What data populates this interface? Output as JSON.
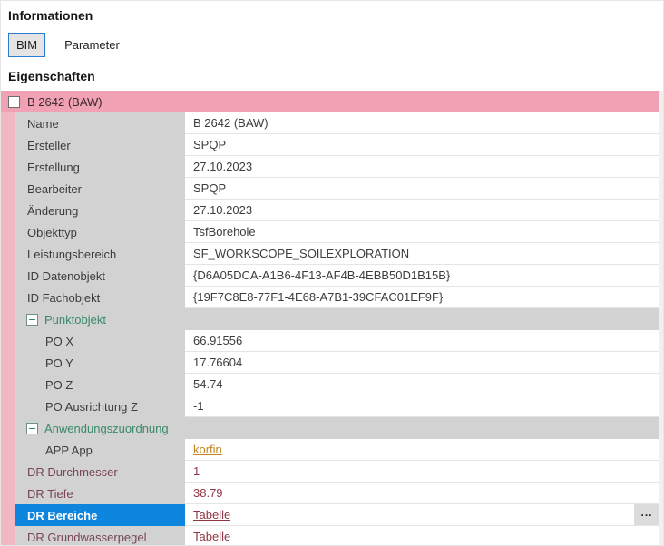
{
  "panel": {
    "title": "Informationen",
    "section_title": "Eigenschaften"
  },
  "tabs": [
    {
      "label": "BIM",
      "selected": true
    },
    {
      "label": "Parameter",
      "selected": false
    }
  ],
  "colors": {
    "tab_border_blue": "#2b7cd3",
    "header_pink": "#f0a1b3",
    "stripe_pink": "#f3b7c3",
    "label_gray": "#d2d2d2",
    "group_green": "#3a8a68",
    "dr_maroon": "#8e3744",
    "dr_label_maroon": "#774553",
    "link_orange": "#c4841d",
    "selection_blue": "#0f86dd"
  },
  "grid": {
    "ellipsis_label": "...",
    "rows": [
      {
        "kind": "header",
        "label": "B 2642 (BAW)"
      },
      {
        "kind": "prop",
        "indent": 1,
        "label": "Name",
        "value": "B 2642 (BAW)"
      },
      {
        "kind": "prop",
        "indent": 1,
        "label": "Ersteller",
        "value": "SPQP"
      },
      {
        "kind": "prop",
        "indent": 1,
        "label": "Erstellung",
        "value": "27.10.2023"
      },
      {
        "kind": "prop",
        "indent": 1,
        "label": "Bearbeiter",
        "value": "SPQP"
      },
      {
        "kind": "prop",
        "indent": 1,
        "label": "Änderung",
        "value": "27.10.2023"
      },
      {
        "kind": "prop",
        "indent": 1,
        "label": "Objekttyp",
        "value": "TsfBorehole"
      },
      {
        "kind": "prop",
        "indent": 1,
        "label": "Leistungsbereich",
        "value": "SF_WORKSCOPE_SOILEXPLORATION"
      },
      {
        "kind": "prop",
        "indent": 1,
        "label": "ID Datenobjekt",
        "value": "{D6A05DCA-A1B6-4F13-AF4B-4EBB50D1B15B}"
      },
      {
        "kind": "prop",
        "indent": 1,
        "label": "ID Fachobjekt",
        "value": "{19F7C8E8-77F1-4E68-A7B1-39CFAC01EF9F}"
      },
      {
        "kind": "group",
        "label": "Punktobjekt"
      },
      {
        "kind": "prop",
        "indent": 2,
        "label": "PO X",
        "value": "66.91556"
      },
      {
        "kind": "prop",
        "indent": 2,
        "label": "PO Y",
        "value": "17.76604"
      },
      {
        "kind": "prop",
        "indent": 2,
        "label": "PO Z",
        "value": "54.74"
      },
      {
        "kind": "prop",
        "indent": 2,
        "label": "PO Ausrichtung Z",
        "value": "-1"
      },
      {
        "kind": "group",
        "label": "Anwendungszuordnung"
      },
      {
        "kind": "prop",
        "indent": 2,
        "label": "APP App",
        "value": "korfin",
        "value_style": "orange-link"
      },
      {
        "kind": "prop",
        "indent": 1,
        "label": "DR Durchmesser",
        "value": "1",
        "label_style": "dr",
        "value_style": "dr"
      },
      {
        "kind": "prop",
        "indent": 1,
        "label": "DR Tiefe",
        "value": "38.79",
        "label_style": "dr",
        "value_style": "dr"
      },
      {
        "kind": "prop",
        "indent": 1,
        "label": "DR Bereiche",
        "value": "Tabelle",
        "label_style": "dr",
        "value_style": "dr-link",
        "selected": true,
        "ellipsis": true
      },
      {
        "kind": "prop",
        "indent": 1,
        "label": "DR Grundwasserpegel",
        "value": "Tabelle",
        "label_style": "dr",
        "value_style": "dr"
      }
    ]
  }
}
